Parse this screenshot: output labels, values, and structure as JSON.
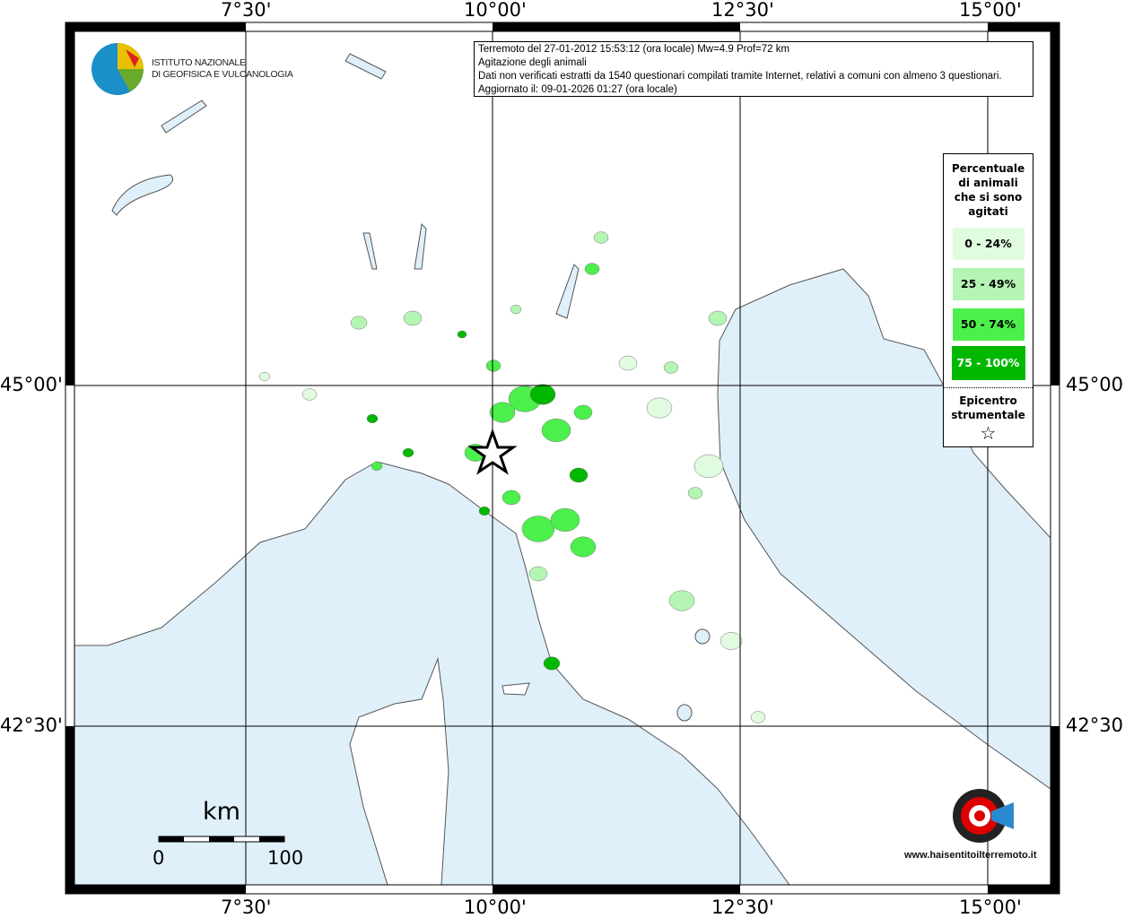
{
  "map": {
    "top_ticks": [
      "7°30'",
      "10°00'",
      "12°30'",
      "15°00'"
    ],
    "bottom_ticks": [
      "7°30'",
      "10°00'",
      "12°30'",
      "15°00'"
    ],
    "left_ticks": [
      "45°00'",
      "42°30'"
    ],
    "right_ticks": [
      "45°00'",
      "42°30'"
    ],
    "sea_color": "#dff0fb",
    "land_color": "#ffffff"
  },
  "logo": {
    "line1": "ISTITUTO NAZIONALE",
    "line2": "DI GEOFISICA E VULCANOLOGIA"
  },
  "info": {
    "line1": "Terremoto del 27-01-2012 15:53:12 (ora locale) Mw=4.9 Prof=72 km",
    "line2": "Agitazione degli animali",
    "line3": "Dati non verificati estratti da 1540 questionari compilati tramite Internet, relativi a comuni con almeno 3 questionari.",
    "line4": "Aggiornato il: 09-01-2026 01:27 (ora locale)"
  },
  "legend": {
    "title_lines": [
      "Percentuale",
      "di animali",
      "che si sono",
      "agitati"
    ],
    "classes": [
      {
        "label": "0 - 24%",
        "color": "#e0fbe0"
      },
      {
        "label": "25 - 49%",
        "color": "#b4f5b4"
      },
      {
        "label": "50 - 74%",
        "color": "#4cf04c"
      },
      {
        "label": "75 - 100%",
        "color": "#00b800"
      }
    ],
    "epicenter_lines": [
      "Epicentro",
      "strumentale"
    ],
    "epicenter_icon": "star-outline"
  },
  "scale": {
    "unit": "km",
    "min": "0",
    "max": "100"
  },
  "watermark": {
    "text": "www.haisentitoilterremoto.it"
  }
}
